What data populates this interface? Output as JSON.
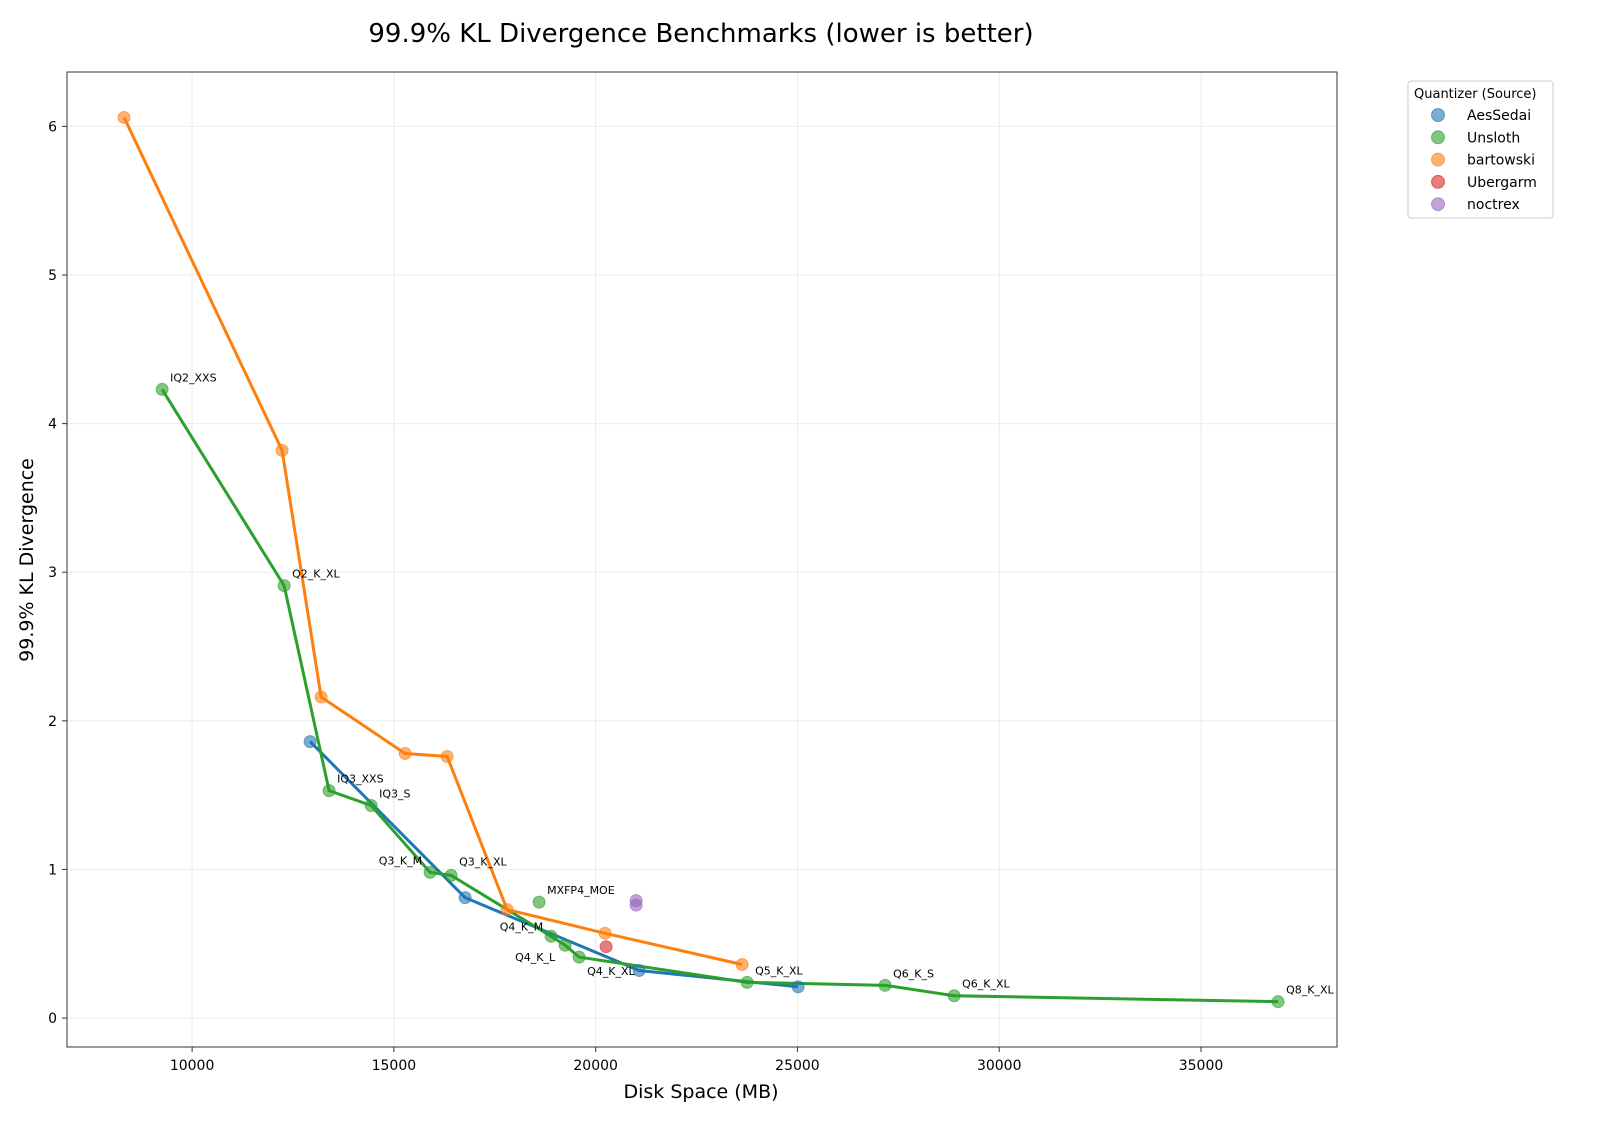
{
  "chart_data": {
    "type": "line",
    "title": "99.9% KL Divergence Benchmarks (lower is better)",
    "xlabel": "Disk Space (MB)",
    "ylabel": "99.9% KL Divergence",
    "xlim": [
      6900,
      38370
    ],
    "ylim": [
      -0.195,
      6.366
    ],
    "xticks": [
      10000,
      15000,
      20000,
      25000,
      30000,
      35000
    ],
    "yticks": [
      0,
      1,
      2,
      3,
      4,
      5,
      6
    ],
    "grid": true,
    "legend": {
      "title": "Quantizer (Source)",
      "placement": "outside-top-right"
    },
    "series": [
      {
        "name": "AesSedai",
        "color": "#1f77b4",
        "line": true,
        "points": [
          {
            "x": 12924,
            "y": 1.86
          },
          {
            "x": 16765,
            "y": 0.81
          },
          {
            "x": 21076,
            "y": 0.32
          },
          {
            "x": 25016,
            "y": 0.21
          }
        ]
      },
      {
        "name": "Unsloth",
        "color": "#2ca02c",
        "line": true,
        "points": [
          {
            "x": 9257,
            "y": 4.23,
            "label": "IQ2_XXS"
          },
          {
            "x": 12280,
            "y": 2.91,
            "label": "Q2_K_XL"
          },
          {
            "x": 13395,
            "y": 1.53,
            "label": "IQ3_XXS"
          },
          {
            "x": 14436,
            "y": 1.43,
            "label": "IQ3_S"
          },
          {
            "x": 15898,
            "y": 0.98,
            "label": "Q3_K_M"
          },
          {
            "x": 16418,
            "y": 0.96,
            "label": "Q3_K_XL"
          },
          {
            "x": 18896,
            "y": 0.55,
            "label": "Q4_K_M"
          },
          {
            "x": 19243,
            "y": 0.49,
            "label": "Q4_K_L"
          },
          {
            "x": 19590,
            "y": 0.41,
            "label": "Q4_K_XL"
          },
          {
            "x": 23753,
            "y": 0.24,
            "label": "Q5_K_XL"
          },
          {
            "x": 27172,
            "y": 0.22,
            "label": "Q6_K_S"
          },
          {
            "x": 28882,
            "y": 0.15,
            "label": "Q6_K_XL"
          },
          {
            "x": 36910,
            "y": 0.11,
            "label": "Q8_K_XL"
          }
        ],
        "extra_points": [
          {
            "x": 18598,
            "y": 0.78,
            "label": "MXFP4_MOE"
          }
        ]
      },
      {
        "name": "bartowski",
        "color": "#ff7f0e",
        "line": true,
        "points": [
          {
            "x": 8315,
            "y": 6.06
          },
          {
            "x": 12230,
            "y": 3.82
          },
          {
            "x": 13197,
            "y": 2.16
          },
          {
            "x": 15278,
            "y": 1.78
          },
          {
            "x": 16319,
            "y": 1.76
          },
          {
            "x": 17806,
            "y": 0.73
          },
          {
            "x": 20234,
            "y": 0.57
          },
          {
            "x": 23629,
            "y": 0.36
          }
        ]
      },
      {
        "name": "Ubergarm",
        "color": "#d62728",
        "line": false,
        "points": [
          {
            "x": 20259,
            "y": 0.48
          }
        ]
      },
      {
        "name": "noctrex",
        "color": "#9467bd",
        "line": false,
        "points": [
          {
            "x": 21002,
            "y": 0.79
          },
          {
            "x": 21002,
            "y": 0.76
          }
        ]
      }
    ]
  }
}
